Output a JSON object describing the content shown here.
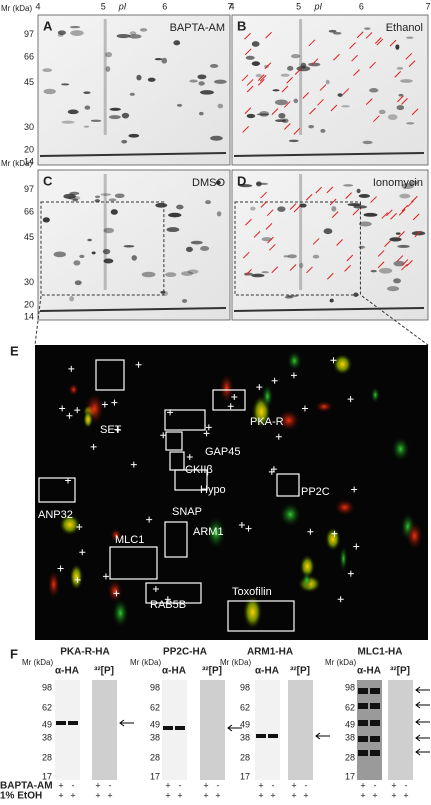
{
  "gel_panels": {
    "mr_label": "Mr (kDa)",
    "pi_label": "pI",
    "pi_ticks": [
      "4",
      "5",
      "6",
      "7"
    ],
    "mr_ticks": [
      "97",
      "66",
      "45",
      "30",
      "20",
      "14"
    ],
    "gels": [
      {
        "letter": "A",
        "treatment": "BAPTA-AM"
      },
      {
        "letter": "B",
        "treatment": "Ethanol"
      },
      {
        "letter": "C",
        "treatment": "DMSO"
      },
      {
        "letter": "D",
        "treatment": "Ionomycin"
      }
    ]
  },
  "overlay": {
    "letter": "E",
    "spots": [
      "SET",
      "PKA-R",
      "GAP45",
      "CKIIβ",
      "Hypo",
      "PP2C",
      "ANP32",
      "SNAP",
      "MLC1",
      "ARM1",
      "RAB5B",
      "Toxofilin"
    ]
  },
  "blots": {
    "letter": "F",
    "mr_label": "Mr (kDa)",
    "lane_headers": [
      "α-HA",
      "³²[P]"
    ],
    "mr_ticks": [
      "98",
      "62",
      "49",
      "38",
      "28",
      "17"
    ],
    "proteins": [
      "PKA-R-HA",
      "PP2C-HA",
      "ARM1-HA",
      "MLC1-HA"
    ],
    "conditions": [
      {
        "label": "BAPTA-AM",
        "signs": [
          "+",
          "-",
          "+",
          "-"
        ]
      },
      {
        "label": "1% EtOH",
        "signs": [
          "+",
          "+",
          "+",
          "+"
        ]
      }
    ]
  }
}
